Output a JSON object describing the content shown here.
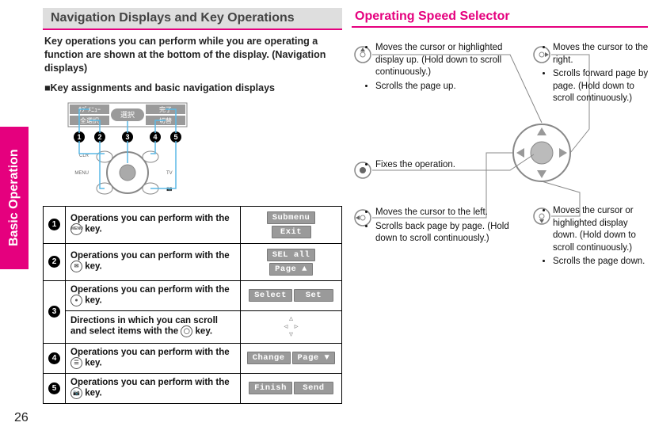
{
  "colors": {
    "accent": "#e5007e",
    "chip_bg": "#9a9a9a",
    "banner_bg": "#dedede",
    "line_blue": "#5bb9e6"
  },
  "page_number": "26",
  "sidebar_label": "Basic Operation",
  "left": {
    "banner_title": "Navigation Displays and Key Operations",
    "intro": "Key operations you can perform while you are operating a function are shown at the bottom of the display. (Navigation displays)",
    "subhead": "■Key assignments and basic navigation displays",
    "figure": {
      "screen_labels": {
        "tl": "ｻﾌﾞﾒﾆｭｰ",
        "tr": "完了",
        "bl": "全選択",
        "center": "選択",
        "br": "切替"
      },
      "markers": [
        "1",
        "2",
        "3",
        "4",
        "5"
      ],
      "side_labels": [
        "CLR",
        "MENU",
        "TV",
        "📷"
      ]
    },
    "rows": [
      {
        "num": "1",
        "desc_prefix": "Operations you can perform with the ",
        "key_label": "MENU",
        "desc_suffix": " key.",
        "chips": [
          "Submenu",
          "Exit"
        ]
      },
      {
        "num": "2",
        "desc_prefix": "Operations you can perform with the ",
        "key_label": "✉",
        "desc_suffix": " key.",
        "chips": [
          "SEL all",
          "Page ▲"
        ]
      },
      {
        "num": "3a",
        "desc_prefix": "Operations you can perform with the ",
        "key_label": "●",
        "desc_suffix": " key.",
        "chips": [
          "Select",
          "Set"
        ]
      },
      {
        "num": "3b",
        "desc_prefix": "Directions in which you can scroll and select items with the ",
        "key_label": "◯",
        "desc_suffix": " key.",
        "arrows": "▵\n◃   ▹\n▿"
      },
      {
        "num": "4",
        "desc_prefix": "Operations you can perform with the ",
        "key_label": "☰",
        "desc_suffix": " key.",
        "chips": [
          "Change",
          "Page ▼"
        ]
      },
      {
        "num": "5",
        "desc_prefix": "Operations you can perform with the ",
        "key_label": "📷",
        "desc_suffix": " key.",
        "chips": [
          "Finish",
          "Send"
        ]
      }
    ]
  },
  "right": {
    "title": "Operating Speed Selector",
    "up": [
      "Moves the cursor or highlighted display up. (Hold down to scroll continuously.)",
      "Scrolls the page up."
    ],
    "right_d": [
      "Moves the cursor to the right.",
      "Scrolls forward page by page. (Hold down to scroll continuously.)"
    ],
    "center": [
      "Fixes the operation."
    ],
    "left_d": [
      "Moves the cursor to the left.",
      "Scrolls back page by page. (Hold down to scroll continuously.)"
    ],
    "down": [
      "Moves the cursor or highlighted display down. (Hold down to scroll continuously.)",
      "Scrolls the page down."
    ]
  }
}
